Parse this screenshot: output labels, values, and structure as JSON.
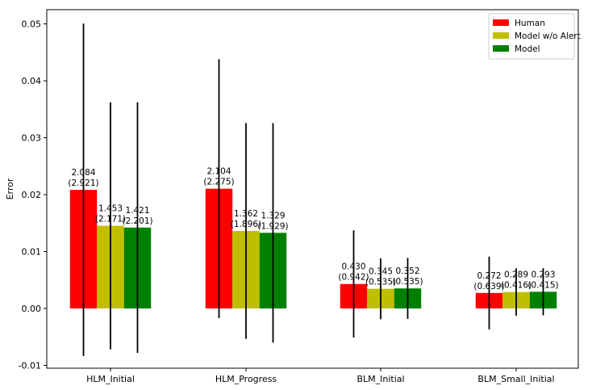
{
  "chart_data": {
    "type": "bar",
    "ylabel": "Error",
    "xlabel": "",
    "ylim": [
      -0.0105,
      0.0525
    ],
    "yticks": [
      -0.01,
      0.0,
      0.01,
      0.02,
      0.03,
      0.04,
      0.05
    ],
    "ytick_labels": [
      "-0.01",
      "0.00",
      "0.01",
      "0.02",
      "0.03",
      "0.04",
      "0.05"
    ],
    "categories": [
      "HLM_Initial",
      "HLM_Progress",
      "BLM_Initial",
      "BLM_Small_Initial"
    ],
    "legend_position": "top-right",
    "series": [
      {
        "name": "Human",
        "color": "#ff0000",
        "values": [
          0.02084,
          0.02104,
          0.0043,
          0.00272
        ],
        "errors": [
          0.02921,
          0.02275,
          0.00942,
          0.00639
        ],
        "labels": [
          "2.084",
          "2.104",
          "0.430",
          "0.272"
        ],
        "sublabels": [
          "(2.921)",
          "(2.275)",
          "(0.942)",
          "(0.639)"
        ]
      },
      {
        "name": "Model w/o Alert",
        "color": "#bfbf00",
        "values": [
          0.01453,
          0.01362,
          0.00345,
          0.00289
        ],
        "errors": [
          0.02171,
          0.01896,
          0.00535,
          0.00416
        ],
        "labels": [
          "1.453",
          "1.362",
          "0.345",
          "0.289"
        ],
        "sublabels": [
          "(2.171)",
          "(1.896)",
          "(0.535)",
          "(0.416)"
        ]
      },
      {
        "name": "Model",
        "color": "#008000",
        "values": [
          0.01421,
          0.01329,
          0.00352,
          0.00293
        ],
        "errors": [
          0.02201,
          0.01929,
          0.00535,
          0.00415
        ],
        "labels": [
          "1.421",
          "1.329",
          "0.352",
          "0.293"
        ],
        "sublabels": [
          "(2.201)",
          "(1.929)",
          "(0.535)",
          "(0.415)"
        ]
      }
    ]
  }
}
